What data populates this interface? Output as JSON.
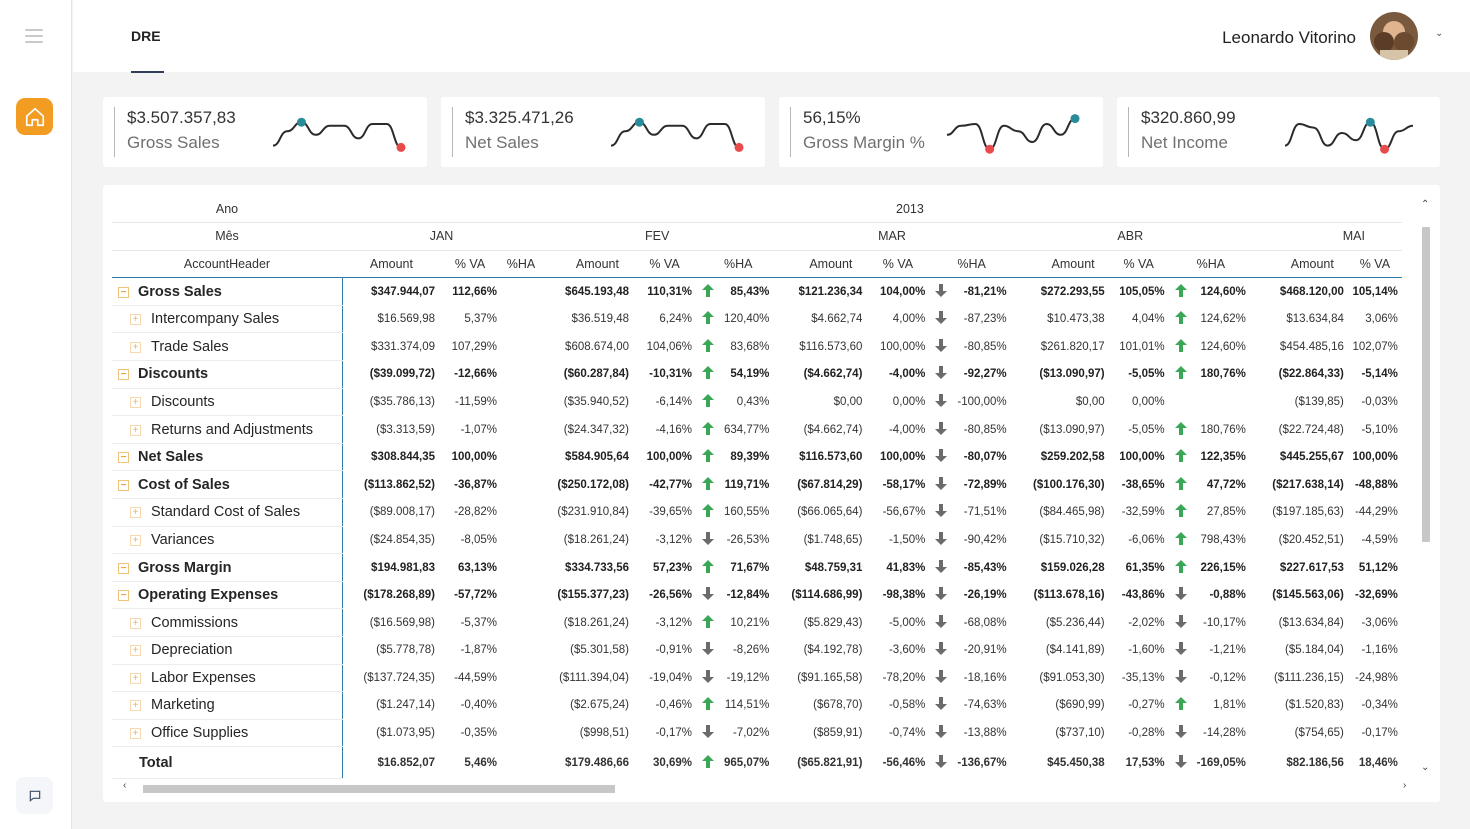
{
  "header": {
    "tab": "DRE",
    "user_name": "Leonardo Vitorino"
  },
  "kpis": [
    {
      "value": "$3.507.357,83",
      "label": "Gross Sales",
      "trend": [
        0.85,
        0.45,
        0.2,
        0.55,
        0.3,
        0.3,
        0.65,
        0.25,
        0.25,
        0.9
      ]
    },
    {
      "value": "$3.325.471,26",
      "label": "Net Sales",
      "trend": [
        0.85,
        0.45,
        0.2,
        0.55,
        0.3,
        0.3,
        0.65,
        0.25,
        0.25,
        0.9
      ]
    },
    {
      "value": "56,15%",
      "label": "Gross Margin %",
      "trend": [
        0.55,
        0.3,
        0.25,
        0.95,
        0.3,
        0.45,
        0.75,
        0.25,
        0.55,
        0.1
      ]
    },
    {
      "value": "$320.860,99",
      "label": "Net Income",
      "trend": [
        0.85,
        0.25,
        0.35,
        0.85,
        0.5,
        0.7,
        0.2,
        0.95,
        0.45,
        0.3
      ]
    }
  ],
  "matrix": {
    "labels": {
      "year_row": "Ano",
      "month_row": "Mês",
      "account_row": "AccountHeader",
      "year": "2013"
    },
    "months": [
      "JAN",
      "FEV",
      "MAR",
      "ABR",
      "MAI"
    ],
    "columns": [
      "Amount",
      "% VA",
      "%HA"
    ],
    "rows": [
      {
        "label": "Gross Sales",
        "level": 0,
        "cells": [
          "$347.944,07",
          "112,66%",
          "",
          "$645.193,48",
          "110,31%",
          "up",
          "85,43%",
          "$121.236,34",
          "104,00%",
          "down",
          "-81,21%",
          "$272.293,55",
          "105,05%",
          "up",
          "124,60%",
          "$468.120,00",
          "105,14%"
        ]
      },
      {
        "label": "Intercompany Sales",
        "level": 1,
        "cells": [
          "$16.569,98",
          "5,37%",
          "",
          "$36.519,48",
          "6,24%",
          "up",
          "120,40%",
          "$4.662,74",
          "4,00%",
          "down",
          "-87,23%",
          "$10.473,38",
          "4,04%",
          "up",
          "124,62%",
          "$13.634,84",
          "3,06%"
        ]
      },
      {
        "label": "Trade Sales",
        "level": 1,
        "cells": [
          "$331.374,09",
          "107,29%",
          "",
          "$608.674,00",
          "104,06%",
          "up",
          "83,68%",
          "$116.573,60",
          "100,00%",
          "down",
          "-80,85%",
          "$261.820,17",
          "101,01%",
          "up",
          "124,60%",
          "$454.485,16",
          "102,07%"
        ]
      },
      {
        "label": "Discounts",
        "level": 0,
        "cells": [
          "($39.099,72)",
          "-12,66%",
          "",
          "($60.287,84)",
          "-10,31%",
          "up",
          "54,19%",
          "($4.662,74)",
          "-4,00%",
          "down",
          "-92,27%",
          "($13.090,97)",
          "-5,05%",
          "up",
          "180,76%",
          "($22.864,33)",
          "-5,14%"
        ]
      },
      {
        "label": "Discounts",
        "level": 1,
        "cells": [
          "($35.786,13)",
          "-11,59%",
          "",
          "($35.940,52)",
          "-6,14%",
          "up",
          "0,43%",
          "$0,00",
          "0,00%",
          "down",
          "-100,00%",
          "$0,00",
          "0,00%",
          "",
          "",
          "($139,85)",
          "-0,03%"
        ]
      },
      {
        "label": "Returns and Adjustments",
        "level": 1,
        "cells": [
          "($3.313,59)",
          "-1,07%",
          "",
          "($24.347,32)",
          "-4,16%",
          "up",
          "634,77%",
          "($4.662,74)",
          "-4,00%",
          "down",
          "-80,85%",
          "($13.090,97)",
          "-5,05%",
          "up",
          "180,76%",
          "($22.724,48)",
          "-5,10%"
        ]
      },
      {
        "label": "Net Sales",
        "level": 0,
        "cells": [
          "$308.844,35",
          "100,00%",
          "",
          "$584.905,64",
          "100,00%",
          "up",
          "89,39%",
          "$116.573,60",
          "100,00%",
          "down",
          "-80,07%",
          "$259.202,58",
          "100,00%",
          "up",
          "122,35%",
          "$445.255,67",
          "100,00%"
        ]
      },
      {
        "label": "Cost of Sales",
        "level": 0,
        "cells": [
          "($113.862,52)",
          "-36,87%",
          "",
          "($250.172,08)",
          "-42,77%",
          "up",
          "119,71%",
          "($67.814,29)",
          "-58,17%",
          "down",
          "-72,89%",
          "($100.176,30)",
          "-38,65%",
          "up",
          "47,72%",
          "($217.638,14)",
          "-48,88%"
        ]
      },
      {
        "label": "Standard Cost of Sales",
        "level": 1,
        "cells": [
          "($89.008,17)",
          "-28,82%",
          "",
          "($231.910,84)",
          "-39,65%",
          "up",
          "160,55%",
          "($66.065,64)",
          "-56,67%",
          "down",
          "-71,51%",
          "($84.465,98)",
          "-32,59%",
          "up",
          "27,85%",
          "($197.185,63)",
          "-44,29%"
        ]
      },
      {
        "label": "Variances",
        "level": 1,
        "cells": [
          "($24.854,35)",
          "-8,05%",
          "",
          "($18.261,24)",
          "-3,12%",
          "down",
          "-26,53%",
          "($1.748,65)",
          "-1,50%",
          "down",
          "-90,42%",
          "($15.710,32)",
          "-6,06%",
          "up",
          "798,43%",
          "($20.452,51)",
          "-4,59%"
        ]
      },
      {
        "label": "Gross Margin",
        "level": 0,
        "cells": [
          "$194.981,83",
          "63,13%",
          "",
          "$334.733,56",
          "57,23%",
          "up",
          "71,67%",
          "$48.759,31",
          "41,83%",
          "down",
          "-85,43%",
          "$159.026,28",
          "61,35%",
          "up",
          "226,15%",
          "$227.617,53",
          "51,12%"
        ]
      },
      {
        "label": "Operating Expenses",
        "level": 0,
        "cells": [
          "($178.268,89)",
          "-57,72%",
          "",
          "($155.377,23)",
          "-26,56%",
          "down",
          "-12,84%",
          "($114.686,99)",
          "-98,38%",
          "down",
          "-26,19%",
          "($113.678,16)",
          "-43,86%",
          "down",
          "-0,88%",
          "($145.563,06)",
          "-32,69%"
        ]
      },
      {
        "label": "Commissions",
        "level": 1,
        "cells": [
          "($16.569,98)",
          "-5,37%",
          "",
          "($18.261,24)",
          "-3,12%",
          "up",
          "10,21%",
          "($5.829,43)",
          "-5,00%",
          "down",
          "-68,08%",
          "($5.236,44)",
          "-2,02%",
          "down",
          "-10,17%",
          "($13.634,84)",
          "-3,06%"
        ]
      },
      {
        "label": "Depreciation",
        "level": 1,
        "cells": [
          "($5.778,78)",
          "-1,87%",
          "",
          "($5.301,58)",
          "-0,91%",
          "down",
          "-8,26%",
          "($4.192,78)",
          "-3,60%",
          "down",
          "-20,91%",
          "($4.141,89)",
          "-1,60%",
          "down",
          "-1,21%",
          "($5.184,04)",
          "-1,16%"
        ]
      },
      {
        "label": "Labor Expenses",
        "level": 1,
        "cells": [
          "($137.724,35)",
          "-44,59%",
          "",
          "($111.394,04)",
          "-19,04%",
          "down",
          "-19,12%",
          "($91.165,58)",
          "-78,20%",
          "down",
          "-18,16%",
          "($91.053,30)",
          "-35,13%",
          "down",
          "-0,12%",
          "($111.236,15)",
          "-24,98%"
        ]
      },
      {
        "label": "Marketing",
        "level": 1,
        "cells": [
          "($1.247,14)",
          "-0,40%",
          "",
          "($2.675,24)",
          "-0,46%",
          "up",
          "114,51%",
          "($678,70)",
          "-0,58%",
          "down",
          "-74,63%",
          "($690,99)",
          "-0,27%",
          "up",
          "1,81%",
          "($1.520,83)",
          "-0,34%"
        ]
      },
      {
        "label": "Office Supplies",
        "level": 1,
        "cells": [
          "($1.073,95)",
          "-0,35%",
          "",
          "($998,51)",
          "-0,17%",
          "down",
          "-7,02%",
          "($859,91)",
          "-0,74%",
          "down",
          "-13,88%",
          "($737,10)",
          "-0,28%",
          "down",
          "-14,28%",
          "($754,65)",
          "-0,17%"
        ]
      }
    ],
    "total": {
      "label": "Total",
      "cells": [
        "$16.852,07",
        "5,46%",
        "",
        "$179.486,66",
        "30,69%",
        "up",
        "965,07%",
        "($65.821,91)",
        "-56,46%",
        "down",
        "-136,67%",
        "$45.450,38",
        "17,53%",
        "down",
        "-169,05%",
        "$82.186,56",
        "18,46%"
      ]
    }
  },
  "colors": {
    "accent_orange": "#f39c22",
    "arrow_up": "#3aa757",
    "arrow_down": "#6b6b6b",
    "spark_line": "#2b2b2b",
    "spark_high": "#2a8c9a",
    "spark_low": "#e84b4b",
    "header_rule": "#2f7ba8"
  }
}
